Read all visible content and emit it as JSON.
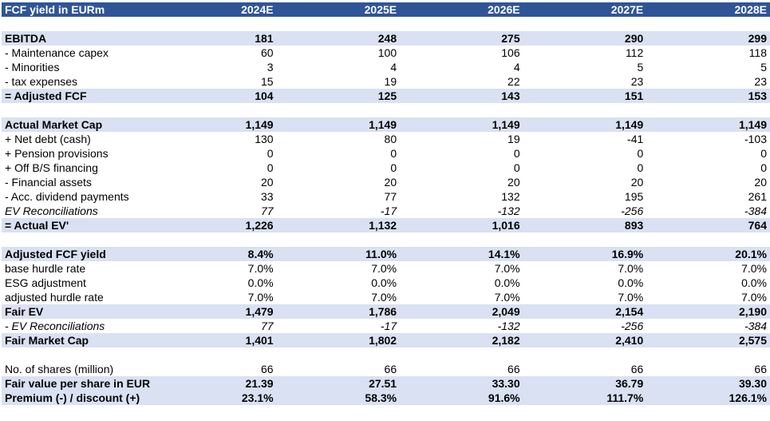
{
  "header": {
    "title": "FCF yield in EURm",
    "years": [
      "2024E",
      "2025E",
      "2026E",
      "2027E",
      "2028E"
    ]
  },
  "rows": [
    {
      "type": "gap"
    },
    {
      "type": "band",
      "label": "EBITDA",
      "values": [
        "181",
        "248",
        "275",
        "290",
        "299"
      ]
    },
    {
      "type": "plain",
      "label": "- Maintenance capex",
      "values": [
        "60",
        "100",
        "106",
        "112",
        "118"
      ]
    },
    {
      "type": "plain",
      "label": "- Minorities",
      "values": [
        "3",
        "4",
        "4",
        "5",
        "5"
      ]
    },
    {
      "type": "plain",
      "label": "- tax expenses",
      "values": [
        "15",
        "19",
        "22",
        "23",
        "23"
      ]
    },
    {
      "type": "band",
      "label": "= Adjusted FCF",
      "values": [
        "104",
        "125",
        "143",
        "151",
        "153"
      ]
    },
    {
      "type": "gap"
    },
    {
      "type": "band",
      "label": "Actual Market Cap",
      "values": [
        "1,149",
        "1,149",
        "1,149",
        "1,149",
        "1,149"
      ]
    },
    {
      "type": "plain",
      "label": "+ Net debt (cash)",
      "values": [
        "130",
        "80",
        "19",
        "-41",
        "-103"
      ]
    },
    {
      "type": "plain",
      "label": "+ Pension provisions",
      "values": [
        "0",
        "0",
        "0",
        "0",
        "0"
      ]
    },
    {
      "type": "plain",
      "label": "+ Off B/S financing",
      "values": [
        "0",
        "0",
        "0",
        "0",
        "0"
      ]
    },
    {
      "type": "plain",
      "label": "- Financial assets",
      "values": [
        "20",
        "20",
        "20",
        "20",
        "20"
      ]
    },
    {
      "type": "plain",
      "label": "- Acc. dividend payments",
      "values": [
        "33",
        "77",
        "132",
        "195",
        "261"
      ]
    },
    {
      "type": "ital",
      "label": "EV Reconciliations",
      "values": [
        "77",
        "-17",
        "-132",
        "-256",
        "-384"
      ]
    },
    {
      "type": "band",
      "label": "= Actual EV'",
      "values": [
        "1,226",
        "1,132",
        "1,016",
        "893",
        "764"
      ]
    },
    {
      "type": "gap"
    },
    {
      "type": "band",
      "label": "Adjusted FCF yield",
      "values": [
        "8.4%",
        "11.0%",
        "14.1%",
        "16.9%",
        "20.1%"
      ]
    },
    {
      "type": "plain",
      "label": "base hurdle rate",
      "values": [
        "7.0%",
        "7.0%",
        "7.0%",
        "7.0%",
        "7.0%"
      ]
    },
    {
      "type": "plain",
      "label": "ESG adjustment",
      "values": [
        "0.0%",
        "0.0%",
        "0.0%",
        "0.0%",
        "0.0%"
      ]
    },
    {
      "type": "plain",
      "label": "adjusted hurdle rate",
      "values": [
        "7.0%",
        "7.0%",
        "7.0%",
        "7.0%",
        "7.0%"
      ]
    },
    {
      "type": "band",
      "label": "Fair EV",
      "values": [
        "1,479",
        "1,786",
        "2,049",
        "2,154",
        "2,190"
      ]
    },
    {
      "type": "ital",
      "label": "- EV Reconciliations",
      "values": [
        "77",
        "-17",
        "-132",
        "-256",
        "-384"
      ]
    },
    {
      "type": "band",
      "label": "Fair Market Cap",
      "values": [
        "1,401",
        "1,802",
        "2,182",
        "2,410",
        "2,575"
      ]
    },
    {
      "type": "gap"
    },
    {
      "type": "plain",
      "label": "No. of shares (million)",
      "values": [
        "66",
        "66",
        "66",
        "66",
        "66"
      ]
    },
    {
      "type": "band",
      "label": "Fair value per share in EUR",
      "values": [
        "21.39",
        "27.51",
        "33.30",
        "36.79",
        "39.30"
      ]
    },
    {
      "type": "band",
      "label": "Premium (-) / discount (+)",
      "values": [
        "23.1%",
        "58.3%",
        "91.6%",
        "111.7%",
        "126.1%"
      ]
    }
  ]
}
